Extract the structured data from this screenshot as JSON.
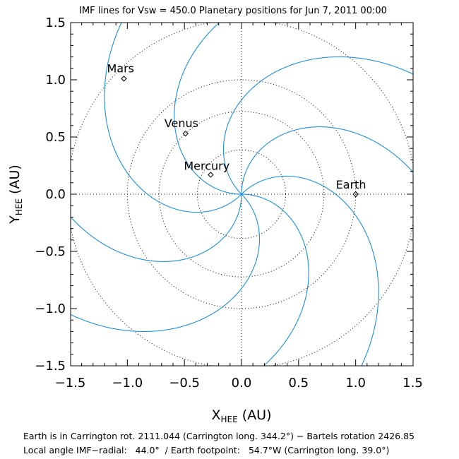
{
  "chart_data": {
    "type": "line",
    "title": "IMF lines for Vsw =  450.0 Planetary positions for Jun  7, 2011 00:00",
    "xlabel_main": "X",
    "xlabel_sub": "HEE",
    "xlabel_unit": " (AU)",
    "ylabel_main": "Y",
    "ylabel_sub": "HEE",
    "ylabel_unit": " (AU)",
    "xlim": [
      -1.5,
      1.5
    ],
    "ylim": [
      -1.5,
      1.5
    ],
    "xticks": [
      "−1.5",
      "−1.0",
      "−0.5",
      "0.0",
      "0.5",
      "1.0",
      "1.5"
    ],
    "yticks": [
      "−1.5",
      "−1.0",
      "−0.5",
      "0.0",
      "0.5",
      "1.0",
      "1.5"
    ],
    "orbit_radii_au": [
      0.387,
      0.723,
      1.0,
      1.524
    ],
    "imf_solar_wind_speed_kms": 450.0,
    "imf_line_count": 8,
    "planets": [
      {
        "name": "Mercury",
        "x": -0.27,
        "y": 0.17
      },
      {
        "name": "Venus",
        "x": -0.49,
        "y": 0.53
      },
      {
        "name": "Earth",
        "x": 1.0,
        "y": 0.0
      },
      {
        "name": "Mars",
        "x": -1.03,
        "y": 1.01
      }
    ],
    "colors": {
      "imf": "#1f8fd8",
      "axes": "#000000",
      "grid": "#000000"
    }
  },
  "footer": {
    "line1": "Earth is in Carrington rot. 2111.044 (Carrington long. 344.2°) − Bartels rotation 2426.85",
    "line2": "Local angle IMF−radial:   44.0°  / Earth footpoint:   54.7°W (Carrington long. 39.0°)"
  }
}
